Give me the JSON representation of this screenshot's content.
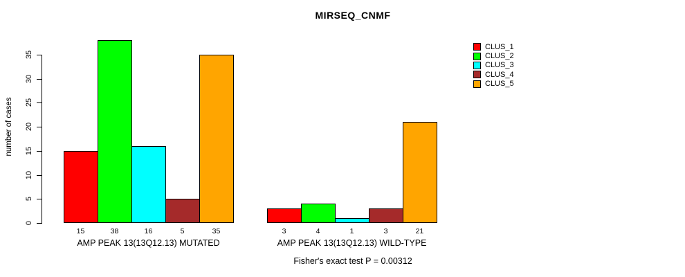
{
  "chart_data": {
    "type": "bar",
    "title": "MIRSEQ_CNMF",
    "ylabel": "number of cases",
    "xlabel": "",
    "ylim": [
      0,
      38
    ],
    "yticks": [
      0,
      5,
      10,
      15,
      20,
      25,
      30,
      35
    ],
    "grid": false,
    "legend_position": "top-right",
    "categories": [
      "AMP PEAK 13(13Q12.13) MUTATED",
      "AMP PEAK 13(13Q12.13) WILD-TYPE"
    ],
    "series": [
      {
        "name": "CLUS_1",
        "color": "#ff0000",
        "values": [
          15,
          3
        ]
      },
      {
        "name": "CLUS_2",
        "color": "#00ff00",
        "values": [
          38,
          4
        ]
      },
      {
        "name": "CLUS_3",
        "color": "#00ffff",
        "values": [
          16,
          1
        ]
      },
      {
        "name": "CLUS_4",
        "color": "#a52a2a",
        "values": [
          5,
          3
        ]
      },
      {
        "name": "CLUS_5",
        "color": "#ffa500",
        "values": [
          35,
          21
        ]
      }
    ],
    "bar_value_labels": [
      [
        "15",
        "38",
        "16",
        "5",
        "35"
      ],
      [
        "3",
        "4",
        "1",
        "3",
        "21"
      ]
    ],
    "annotation": "Fisher's exact test P = 0.00312"
  }
}
